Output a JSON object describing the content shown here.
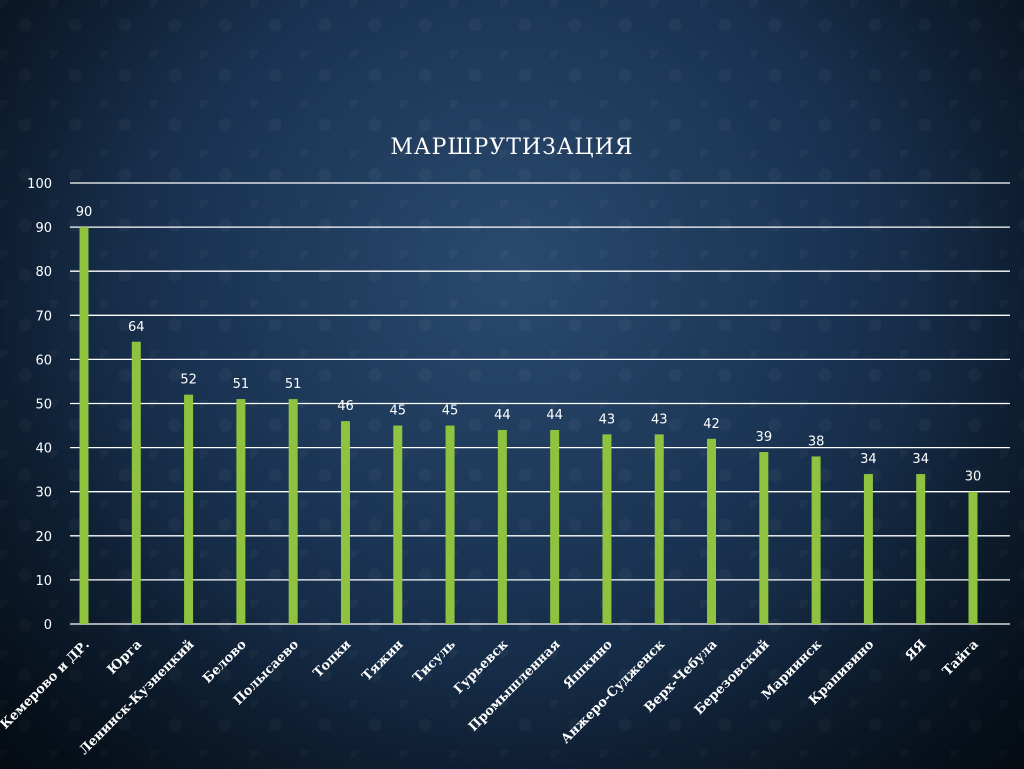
{
  "chart_data": {
    "type": "bar",
    "title": "МАРШРУТИЗАЦИЯ",
    "categories": [
      "Кемерово и ДР.",
      "Юрга",
      "Ленинск-Кузнецкий",
      "Белово",
      "Полысаево",
      "Топки",
      "Тяжин",
      "Тисуль",
      "Гурьевск",
      "Промышленная",
      "Яшкино",
      "Анжеро-Судженск",
      "Верх-Чебула",
      "Березовский",
      "Мариинск",
      "Крапивино",
      "ЯЯ",
      "Тайга"
    ],
    "values": [
      90,
      64,
      52,
      51,
      51,
      46,
      45,
      45,
      44,
      44,
      43,
      43,
      42,
      39,
      38,
      34,
      34,
      30
    ],
    "ylim": [
      0,
      100
    ],
    "yticks": [
      0,
      10,
      20,
      30,
      40,
      50,
      60,
      70,
      80,
      90,
      100
    ],
    "grid": true,
    "bar_color": "#8fc33f",
    "xlabel": "",
    "ylabel": ""
  }
}
